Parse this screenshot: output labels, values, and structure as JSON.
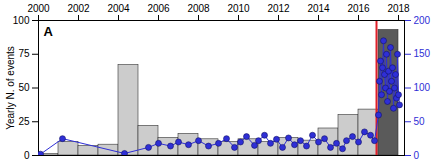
{
  "chart_data": {
    "type": "histogram",
    "title": "A",
    "y_label": "Yearly N. of events",
    "bins": [
      2000,
      2001,
      2002,
      2003,
      2004,
      2005,
      2006,
      2007,
      2008,
      2009,
      2010,
      2011,
      2012,
      2013,
      2014,
      2015,
      2016,
      2017,
      2018
    ],
    "counts": [
      1,
      10,
      7,
      8,
      67,
      22,
      13,
      16,
      12,
      10,
      12,
      10,
      13,
      11,
      20,
      30,
      34,
      93
    ],
    "colors": [
      "#cccccc",
      "#cccccc",
      "#cccccc",
      "#cccccc",
      "#cccccc",
      "#cccccc",
      "#cccccc",
      "#cccccc",
      "#cccccc",
      "#cccccc",
      "#cccccc",
      "#cccccc",
      "#cccccc",
      "#cccccc",
      "#cccccc",
      "#cccccc",
      "#cccccc",
      "#5a5a5a"
    ],
    "xlim": [
      2000,
      2018.3
    ],
    "xticks": [
      2000,
      2002,
      2004,
      2006,
      2008,
      2010,
      2012,
      2014,
      2016,
      2018
    ],
    "ylim": [
      0,
      100
    ],
    "yticks": [
      0,
      25,
      50,
      75,
      100
    ],
    "y2lim": [
      0,
      200
    ],
    "y2ticks": [
      0,
      50,
      100,
      150,
      200
    ],
    "reference_lines": [
      {
        "x": 2016.9,
        "color": "#e0202a"
      }
    ],
    "series": [
      {
        "type": "line",
        "marker": "circle",
        "axis": "y2",
        "color": "#2f2fd6",
        "x": [
          2000.1,
          2001.2,
          2004.3,
          2005.5,
          2006.0,
          2006.6,
          2007.0,
          2007.5,
          2008.0,
          2008.5,
          2009.0,
          2009.4,
          2009.8,
          2010.1,
          2010.4,
          2010.8,
          2011.0,
          2011.3,
          2011.6,
          2011.9,
          2012.2,
          2012.5,
          2012.8,
          2013.1,
          2013.4,
          2013.7,
          2014.0,
          2014.3,
          2014.6,
          2014.9,
          2015.2,
          2015.4,
          2015.7,
          2016.0,
          2016.3,
          2016.6,
          2016.8,
          2017.0,
          2017.05,
          2017.1,
          2017.15,
          2017.2,
          2017.25,
          2017.3,
          2017.35,
          2017.4,
          2017.45,
          2017.5,
          2017.55,
          2017.6,
          2017.65,
          2017.7,
          2017.75,
          2017.8,
          2017.85,
          2017.9,
          2017.95,
          2018.0,
          2018.05
        ],
        "values": [
          2,
          25,
          3,
          12,
          18,
          14,
          20,
          16,
          22,
          14,
          18,
          25,
          12,
          20,
          28,
          15,
          22,
          30,
          18,
          24,
          12,
          26,
          16,
          22,
          14,
          30,
          20,
          25,
          12,
          18,
          10,
          22,
          28,
          20,
          35,
          30,
          22,
          60,
          110,
          140,
          90,
          130,
          170,
          120,
          100,
          150,
          80,
          125,
          95,
          160,
          110,
          130,
          70,
          100,
          120,
          85,
          150,
          90,
          75
        ]
      }
    ]
  }
}
